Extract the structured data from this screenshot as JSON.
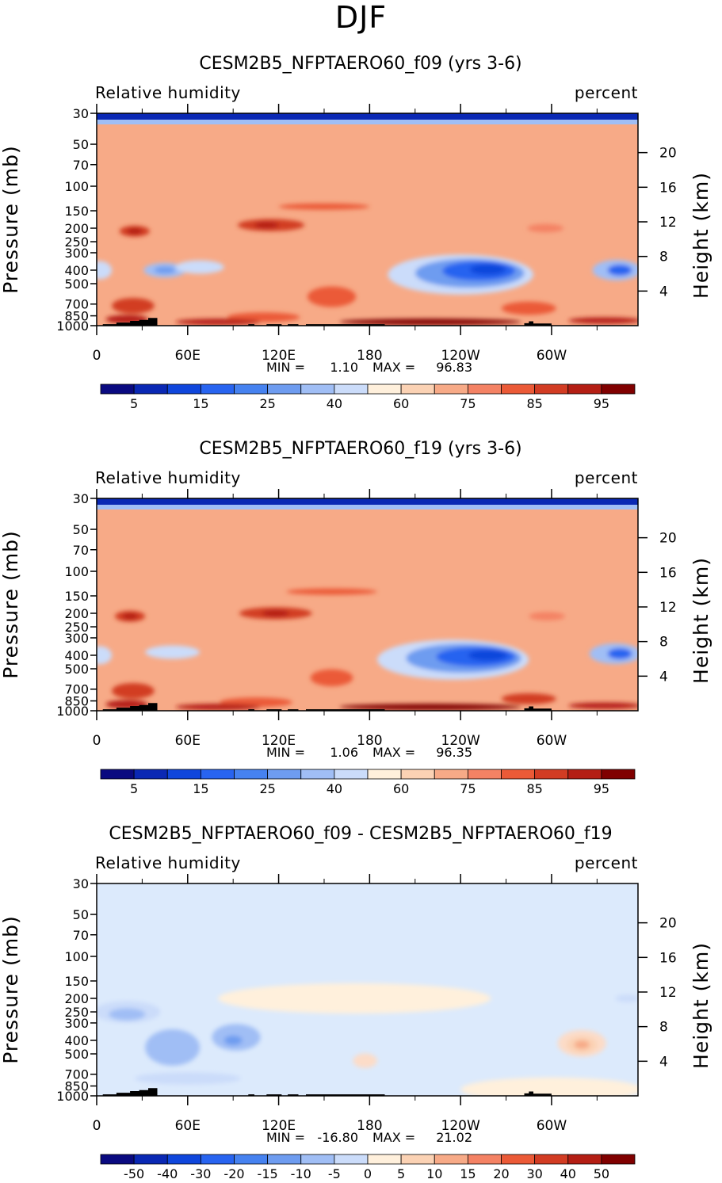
{
  "figure": {
    "season": "DJF"
  },
  "colors": {
    "fill_levels_full": [
      "#0a0a80",
      "#0a28b4",
      "#0f46dc",
      "#2864f0",
      "#4682f0",
      "#6e9cf0",
      "#a0bef5",
      "#cbdcfa",
      "#fff0dc",
      "#fbd2b4",
      "#f7aa87",
      "#f48264",
      "#eb5a37",
      "#d23c23",
      "#b41e14",
      "#800000"
    ],
    "fill_levels_diff": [
      "#0a0a80",
      "#0a28b4",
      "#0f46dc",
      "#2864f0",
      "#4682f0",
      "#6e9cf0",
      "#a0bef5",
      "#cbdcfa",
      "#dceafc",
      "#fff0dc",
      "#fcdcc8",
      "#fbd2b4",
      "#f7aa87",
      "#f48264",
      "#eb5a37",
      "#d23c23",
      "#b41e14",
      "#800000"
    ],
    "topography": "#000000",
    "stratosphere_band": "#0f2aa0"
  },
  "chart_data": [
    {
      "type": "contour",
      "title": "CESM2B5_NFPTAERO60_f09 (yrs 3-6)",
      "variable_label": "Relative humidity",
      "units_label": "percent",
      "ylabel": "Pressure (mb)",
      "ylabel_right": "Height (km)",
      "x_ticks": [
        "0",
        "60E",
        "120E",
        "180",
        "120W",
        "60W"
      ],
      "x_tick_longitudes": [
        0,
        60,
        120,
        180,
        240,
        300
      ],
      "xlim": [
        0,
        357
      ],
      "y_ticks": [
        "30",
        "50",
        "70",
        "100",
        "150",
        "200",
        "250",
        "300",
        "400",
        "500",
        "700",
        "850",
        "1000"
      ],
      "y_tick_values": [
        30,
        50,
        70,
        100,
        150,
        200,
        250,
        300,
        400,
        500,
        700,
        850,
        1000
      ],
      "ylim": [
        30,
        1000
      ],
      "height_ticks": [
        "20",
        "16",
        "12",
        "8",
        "4"
      ],
      "height_tick_values_km": [
        20,
        16,
        12,
        8,
        4
      ],
      "stats": {
        "min_label": "MIN =",
        "min": "1.10",
        "max_label": "MAX =",
        "max": "96.83"
      },
      "colorbar_labels": [
        "5",
        "15",
        "25",
        "40",
        "60",
        "75",
        "85",
        "95"
      ],
      "colorbar_label_after_box": [
        1,
        3,
        5,
        7,
        9,
        11,
        13,
        15
      ],
      "colorbar_boxes": 16,
      "palette": "fill_levels_full",
      "background_level": 10,
      "features": [
        {
          "lon": 25,
          "p": 210,
          "dlon": 10,
          "dlog": 0.09,
          "level": 13
        },
        {
          "lon": 25,
          "p": 210,
          "dlon": 5,
          "dlog": 0.04,
          "level": 14
        },
        {
          "lon": 45,
          "p": 400,
          "dlon": 14,
          "dlog": 0.12,
          "level": 6
        },
        {
          "lon": 45,
          "p": 400,
          "dlon": 7,
          "dlog": 0.06,
          "level": 5
        },
        {
          "lon": 68,
          "p": 380,
          "dlon": 16,
          "dlog": 0.11,
          "level": 7
        },
        {
          "lon": 2,
          "p": 400,
          "dlon": 8,
          "dlog": 0.15,
          "level": 7
        },
        {
          "lon": 115,
          "p": 190,
          "dlon": 22,
          "dlog": 0.1,
          "level": 13
        },
        {
          "lon": 112,
          "p": 190,
          "dlon": 8,
          "dlog": 0.05,
          "level": 14
        },
        {
          "lon": 150,
          "p": 140,
          "dlon": 30,
          "dlog": 0.05,
          "level": 12
        },
        {
          "lon": 155,
          "p": 620,
          "dlon": 16,
          "dlog": 0.17,
          "level": 12
        },
        {
          "lon": 240,
          "p": 430,
          "dlon": 48,
          "dlog": 0.33,
          "level": 7
        },
        {
          "lon": 246,
          "p": 420,
          "dlon": 36,
          "dlog": 0.24,
          "level": 5
        },
        {
          "lon": 252,
          "p": 405,
          "dlon": 24,
          "dlog": 0.16,
          "level": 3
        },
        {
          "lon": 258,
          "p": 395,
          "dlon": 12,
          "dlog": 0.09,
          "level": 2
        },
        {
          "lon": 296,
          "p": 200,
          "dlon": 12,
          "dlog": 0.07,
          "level": 11
        },
        {
          "lon": 343,
          "p": 400,
          "dlon": 16,
          "dlog": 0.17,
          "level": 6
        },
        {
          "lon": 345,
          "p": 400,
          "dlon": 8,
          "dlog": 0.09,
          "level": 3
        },
        {
          "lon": 24,
          "p": 720,
          "dlon": 14,
          "dlog": 0.13,
          "level": 13
        },
        {
          "lon": 20,
          "p": 900,
          "dlon": 14,
          "dlog": 0.07,
          "level": 14
        },
        {
          "lon": 110,
          "p": 870,
          "dlon": 24,
          "dlog": 0.08,
          "level": 12
        },
        {
          "lon": 220,
          "p": 940,
          "dlon": 60,
          "dlog": 0.04,
          "level": 15
        },
        {
          "lon": 80,
          "p": 940,
          "dlon": 28,
          "dlog": 0.03,
          "level": 14
        },
        {
          "lon": 285,
          "p": 750,
          "dlon": 18,
          "dlog": 0.11,
          "level": 12
        },
        {
          "lon": 335,
          "p": 920,
          "dlon": 24,
          "dlog": 0.05,
          "level": 14
        }
      ]
    },
    {
      "type": "contour",
      "title": "CESM2B5_NFPTAERO60_f19 (yrs 3-6)",
      "variable_label": "Relative humidity",
      "units_label": "percent",
      "ylabel": "Pressure (mb)",
      "ylabel_right": "Height (km)",
      "x_ticks": [
        "0",
        "60E",
        "120E",
        "180",
        "120W",
        "60W"
      ],
      "x_tick_longitudes": [
        0,
        60,
        120,
        180,
        240,
        300
      ],
      "xlim": [
        0,
        357
      ],
      "y_ticks": [
        "30",
        "50",
        "70",
        "100",
        "150",
        "200",
        "250",
        "300",
        "400",
        "500",
        "700",
        "850",
        "1000"
      ],
      "y_tick_values": [
        30,
        50,
        70,
        100,
        150,
        200,
        250,
        300,
        400,
        500,
        700,
        850,
        1000
      ],
      "ylim": [
        30,
        1000
      ],
      "height_ticks": [
        "20",
        "16",
        "12",
        "8",
        "4"
      ],
      "height_tick_values_km": [
        20,
        16,
        12,
        8,
        4
      ],
      "stats": {
        "min_label": "MIN =",
        "min": "1.06",
        "max_label": "MAX =",
        "max": "96.35"
      },
      "colorbar_labels": [
        "5",
        "15",
        "25",
        "40",
        "60",
        "75",
        "85",
        "95"
      ],
      "colorbar_label_after_box": [
        1,
        3,
        5,
        7,
        9,
        11,
        13,
        15
      ],
      "colorbar_boxes": 16,
      "palette": "fill_levels_full",
      "background_level": 10,
      "features": [
        {
          "lon": 22,
          "p": 210,
          "dlon": 10,
          "dlog": 0.09,
          "level": 13
        },
        {
          "lon": 22,
          "p": 210,
          "dlon": 5,
          "dlog": 0.04,
          "level": 14
        },
        {
          "lon": 50,
          "p": 380,
          "dlon": 18,
          "dlog": 0.11,
          "level": 7
        },
        {
          "lon": 2,
          "p": 400,
          "dlon": 8,
          "dlog": 0.15,
          "level": 7
        },
        {
          "lon": 118,
          "p": 200,
          "dlon": 24,
          "dlog": 0.1,
          "level": 13
        },
        {
          "lon": 118,
          "p": 200,
          "dlon": 9,
          "dlog": 0.05,
          "level": 14
        },
        {
          "lon": 155,
          "p": 140,
          "dlon": 30,
          "dlog": 0.05,
          "level": 12
        },
        {
          "lon": 155,
          "p": 580,
          "dlon": 14,
          "dlog": 0.14,
          "level": 12
        },
        {
          "lon": 235,
          "p": 430,
          "dlon": 50,
          "dlog": 0.33,
          "level": 7
        },
        {
          "lon": 242,
          "p": 420,
          "dlon": 38,
          "dlog": 0.24,
          "level": 5
        },
        {
          "lon": 250,
          "p": 410,
          "dlon": 26,
          "dlog": 0.16,
          "level": 3
        },
        {
          "lon": 258,
          "p": 400,
          "dlon": 13,
          "dlog": 0.09,
          "level": 2
        },
        {
          "lon": 297,
          "p": 210,
          "dlon": 12,
          "dlog": 0.07,
          "level": 11
        },
        {
          "lon": 342,
          "p": 390,
          "dlon": 17,
          "dlog": 0.17,
          "level": 6
        },
        {
          "lon": 345,
          "p": 390,
          "dlon": 8,
          "dlog": 0.09,
          "level": 3
        },
        {
          "lon": 24,
          "p": 720,
          "dlon": 14,
          "dlog": 0.13,
          "level": 13
        },
        {
          "lon": 20,
          "p": 900,
          "dlon": 14,
          "dlog": 0.07,
          "level": 14
        },
        {
          "lon": 105,
          "p": 870,
          "dlon": 24,
          "dlog": 0.08,
          "level": 12
        },
        {
          "lon": 220,
          "p": 940,
          "dlon": 60,
          "dlog": 0.04,
          "level": 15
        },
        {
          "lon": 80,
          "p": 940,
          "dlon": 28,
          "dlog": 0.03,
          "level": 14
        },
        {
          "lon": 285,
          "p": 820,
          "dlon": 18,
          "dlog": 0.09,
          "level": 13
        },
        {
          "lon": 335,
          "p": 920,
          "dlon": 24,
          "dlog": 0.05,
          "level": 14
        }
      ]
    },
    {
      "type": "contour",
      "title": "CESM2B5_NFPTAERO60_f09 - CESM2B5_NFPTAERO60_f19",
      "variable_label": "Relative humidity",
      "units_label": "percent",
      "ylabel": "Pressure (mb)",
      "ylabel_right": "Height (km)",
      "x_ticks": [
        "0",
        "60E",
        "120E",
        "180",
        "120W",
        "60W"
      ],
      "x_tick_longitudes": [
        0,
        60,
        120,
        180,
        240,
        300
      ],
      "xlim": [
        0,
        357
      ],
      "y_ticks": [
        "30",
        "50",
        "70",
        "100",
        "150",
        "200",
        "250",
        "300",
        "400",
        "500",
        "700",
        "850",
        "1000"
      ],
      "y_tick_values": [
        30,
        50,
        70,
        100,
        150,
        200,
        250,
        300,
        400,
        500,
        700,
        850,
        1000
      ],
      "ylim": [
        30,
        1000
      ],
      "height_ticks": [
        "20",
        "16",
        "12",
        "8",
        "4"
      ],
      "height_tick_values_km": [
        20,
        16,
        12,
        8,
        4
      ],
      "stats": {
        "min_label": "MIN =",
        "min": "-16.80",
        "max_label": "MAX =",
        "max": "21.02"
      },
      "colorbar_labels": [
        "-50",
        "-40",
        "-30",
        "-20",
        "-15",
        "-10",
        "-5",
        "0",
        "5",
        "10",
        "15",
        "20",
        "30",
        "40",
        "50"
      ],
      "colorbar_label_after_box": [
        1,
        2,
        3,
        4,
        5,
        6,
        7,
        8,
        9,
        10,
        11,
        12,
        13,
        14,
        15
      ],
      "colorbar_boxes": 16,
      "palette": "fill_levels_diff",
      "background_level": 8,
      "features": [
        {
          "lon": 170,
          "p": 200,
          "dlon": 90,
          "dlog": 0.25,
          "level": 9
        },
        {
          "lon": 300,
          "p": 900,
          "dlon": 60,
          "dlog": 0.2,
          "level": 9
        },
        {
          "lon": 20,
          "p": 250,
          "dlon": 22,
          "dlog": 0.18,
          "level": 7
        },
        {
          "lon": 20,
          "p": 260,
          "dlon": 12,
          "dlog": 0.1,
          "level": 6
        },
        {
          "lon": 50,
          "p": 450,
          "dlon": 18,
          "dlog": 0.3,
          "level": 6
        },
        {
          "lon": 92,
          "p": 380,
          "dlon": 16,
          "dlog": 0.22,
          "level": 6
        },
        {
          "lon": 90,
          "p": 400,
          "dlon": 6,
          "dlog": 0.08,
          "level": 5
        },
        {
          "lon": 60,
          "p": 750,
          "dlon": 35,
          "dlog": 0.1,
          "level": 7
        },
        {
          "lon": 177,
          "p": 560,
          "dlon": 8,
          "dlog": 0.12,
          "level": 10
        },
        {
          "lon": 320,
          "p": 420,
          "dlon": 16,
          "dlog": 0.22,
          "level": 10
        },
        {
          "lon": 320,
          "p": 430,
          "dlon": 10,
          "dlog": 0.14,
          "level": 11
        },
        {
          "lon": 320,
          "p": 430,
          "dlon": 5,
          "dlog": 0.07,
          "level": 12
        },
        {
          "lon": 350,
          "p": 200,
          "dlon": 8,
          "dlog": 0.06,
          "level": 7
        }
      ]
    }
  ]
}
